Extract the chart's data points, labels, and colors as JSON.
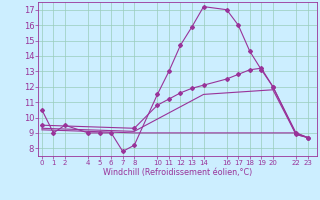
{
  "xlabel": "Windchill (Refroidissement éolien,°C)",
  "background_color": "#cceeff",
  "grid_color": "#99ccbb",
  "line_color": "#993399",
  "x_ticks": [
    0,
    1,
    2,
    4,
    5,
    6,
    7,
    8,
    10,
    11,
    12,
    13,
    14,
    16,
    17,
    18,
    19,
    20,
    22,
    23
  ],
  "series1_x": [
    0,
    1,
    2,
    4,
    5,
    6,
    7,
    8,
    10,
    11,
    12,
    13,
    14,
    16,
    17,
    18,
    19,
    20,
    22,
    23
  ],
  "series1_y": [
    10.5,
    9.0,
    9.5,
    9.0,
    9.0,
    9.0,
    7.8,
    8.2,
    11.5,
    13.0,
    14.7,
    15.9,
    17.2,
    17.0,
    16.0,
    14.3,
    13.1,
    12.0,
    8.9,
    8.7
  ],
  "series2_x": [
    0,
    8,
    10,
    11,
    12,
    13,
    14,
    16,
    17,
    18,
    19,
    20,
    22,
    23
  ],
  "series2_y": [
    9.5,
    9.3,
    10.8,
    11.2,
    11.6,
    11.9,
    12.1,
    12.5,
    12.8,
    13.1,
    13.2,
    12.0,
    9.0,
    8.7
  ],
  "series3_x": [
    0,
    8,
    14,
    20,
    22,
    23
  ],
  "series3_y": [
    9.3,
    9.1,
    11.5,
    11.8,
    8.9,
    8.7
  ],
  "series4_x": [
    0,
    8,
    22,
    23
  ],
  "series4_y": [
    9.2,
    9.0,
    9.0,
    8.7
  ],
  "ylim": [
    7.5,
    17.5
  ],
  "xlim": [
    -0.3,
    23.8
  ],
  "yticks": [
    8,
    9,
    10,
    11,
    12,
    13,
    14,
    15,
    16,
    17
  ]
}
